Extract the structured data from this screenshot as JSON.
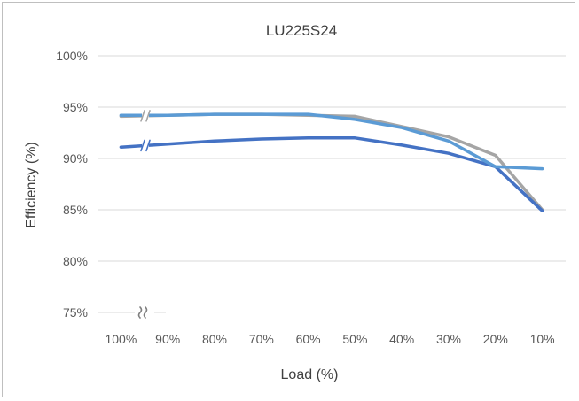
{
  "chart_data": {
    "type": "line",
    "title": "LU225S24",
    "xlabel": "Load (%)",
    "ylabel": "Efficiency (%)",
    "categories": [
      "100%",
      "90%",
      "80%",
      "70%",
      "60%",
      "50%",
      "40%",
      "30%",
      "20%",
      "10%"
    ],
    "y_ticks": [
      "75%",
      "80%",
      "85%",
      "90%",
      "95%",
      "100%"
    ],
    "ylim": [
      75,
      100
    ],
    "grid": true,
    "axis_break": true,
    "series": [
      {
        "color": "#a5a5a5",
        "values": [
          94.1,
          94.2,
          94.3,
          94.3,
          94.2,
          94.1,
          93.1,
          92.1,
          90.3,
          85.0
        ]
      },
      {
        "color": "#4472c4",
        "values": [
          91.1,
          91.4,
          91.7,
          91.9,
          92.0,
          92.0,
          91.3,
          90.5,
          89.2,
          84.9
        ]
      },
      {
        "color": "#5b9bd5",
        "values": [
          94.2,
          94.2,
          94.3,
          94.3,
          94.3,
          93.8,
          93.0,
          91.7,
          89.2,
          89.0
        ]
      }
    ]
  }
}
